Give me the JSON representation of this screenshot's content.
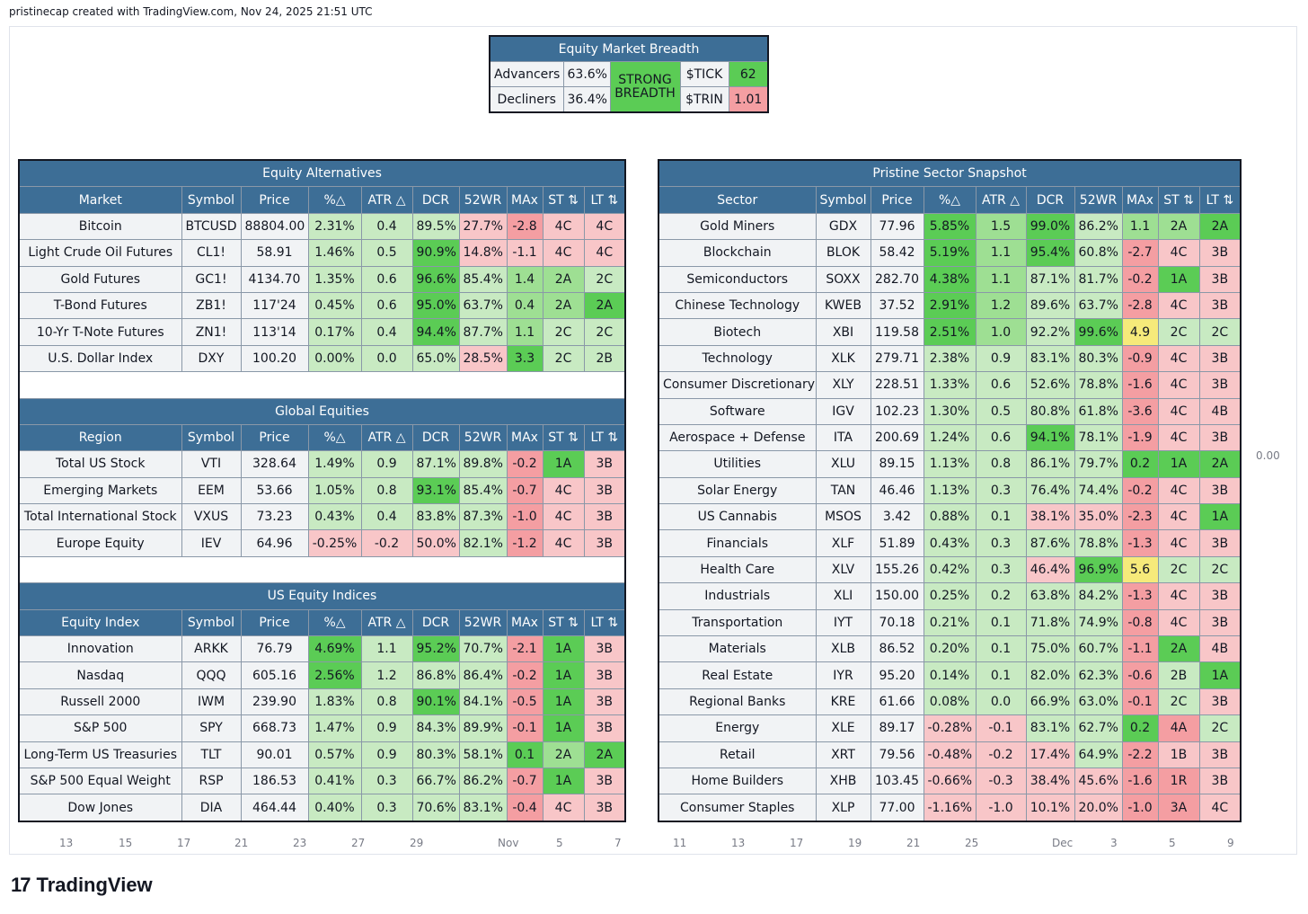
{
  "header": {
    "caption": "pristinecap created with TradingView.com, Nov 24, 2025 21:51 UTC"
  },
  "breadth": {
    "title": "Equity Market Breadth",
    "advancers_label": "Advancers",
    "advancers_value": "63.6%",
    "decliners_label": "Decliners",
    "decliners_value": "36.4%",
    "status": "STRONG BREADTH",
    "tick_label": "$TICK",
    "tick_value": "62",
    "trin_label": "$TRIN",
    "trin_value": "1.01"
  },
  "columns": [
    "Symbol",
    "Price",
    "%△",
    "ATR △",
    "DCR",
    "52WR",
    "MAx",
    "ST ⇅",
    "LT ⇅"
  ],
  "alternatives": {
    "title": "Equity Alternatives",
    "first_col": "Market",
    "rows": [
      [
        "Bitcoin",
        "BTCUSD",
        "88804.00",
        "2.31%",
        "0.4",
        "89.5%",
        "27.7%",
        "-2.8",
        "4C",
        "4C"
      ],
      [
        "Light Crude Oil Futures",
        "CL1!",
        "58.91",
        "1.46%",
        "0.5",
        "90.9%",
        "14.8%",
        "-1.1",
        "4C",
        "4C"
      ],
      [
        "Gold Futures",
        "GC1!",
        "4134.70",
        "1.35%",
        "0.6",
        "96.6%",
        "85.4%",
        "1.4",
        "2A",
        "2C"
      ],
      [
        "T-Bond Futures",
        "ZB1!",
        "117'24",
        "0.45%",
        "0.6",
        "95.0%",
        "63.7%",
        "0.4",
        "2A",
        "2A"
      ],
      [
        "10-Yr T-Note Futures",
        "ZN1!",
        "113'14",
        "0.17%",
        "0.4",
        "94.4%",
        "87.7%",
        "1.1",
        "2C",
        "2C"
      ],
      [
        "U.S. Dollar Index",
        "DXY",
        "100.20",
        "0.00%",
        "0.0",
        "65.0%",
        "28.5%",
        "3.3",
        "2C",
        "2B"
      ]
    ],
    "colors": [
      [
        "w",
        "w",
        "w",
        "g1",
        "g1",
        "g1",
        "r1",
        "r2",
        "r1",
        "r1"
      ],
      [
        "w",
        "w",
        "w",
        "g1",
        "g1",
        "g3",
        "r1",
        "r1",
        "r1",
        "r1"
      ],
      [
        "w",
        "w",
        "w",
        "g1",
        "g1",
        "g3",
        "g1",
        "g2",
        "g2",
        "g1"
      ],
      [
        "w",
        "w",
        "w",
        "g1",
        "g1",
        "g3",
        "g1",
        "g2",
        "g2",
        "g3"
      ],
      [
        "w",
        "w",
        "w",
        "g1",
        "g1",
        "g3",
        "g1",
        "g2",
        "g1",
        "g1"
      ],
      [
        "w",
        "w",
        "w",
        "g1",
        "g1",
        "g1",
        "r1",
        "g3",
        "g1",
        "g1"
      ]
    ]
  },
  "global": {
    "title": "Global Equities",
    "first_col": "Region",
    "rows": [
      [
        "Total US Stock",
        "VTI",
        "328.64",
        "1.49%",
        "0.9",
        "87.1%",
        "89.8%",
        "-0.2",
        "1A",
        "3B"
      ],
      [
        "Emerging Markets",
        "EEM",
        "53.66",
        "1.05%",
        "0.8",
        "93.1%",
        "85.4%",
        "-0.7",
        "4C",
        "3B"
      ],
      [
        "Total International Stock",
        "VXUS",
        "73.23",
        "0.43%",
        "0.4",
        "83.8%",
        "87.3%",
        "-1.0",
        "4C",
        "3B"
      ],
      [
        "Europe Equity",
        "IEV",
        "64.96",
        "-0.25%",
        "-0.2",
        "50.0%",
        "82.1%",
        "-1.2",
        "4C",
        "3B"
      ]
    ],
    "colors": [
      [
        "w",
        "w",
        "w",
        "g1",
        "g1",
        "g1",
        "g1",
        "r2",
        "g3",
        "r1"
      ],
      [
        "w",
        "w",
        "w",
        "g1",
        "g1",
        "g3",
        "g1",
        "r2",
        "r1",
        "r1"
      ],
      [
        "w",
        "w",
        "w",
        "g1",
        "g1",
        "g1",
        "g1",
        "r2",
        "r1",
        "r1"
      ],
      [
        "w",
        "w",
        "w",
        "r1",
        "r1",
        "r1",
        "g1",
        "r2",
        "r1",
        "r1"
      ]
    ]
  },
  "indices": {
    "title": "US Equity Indices",
    "first_col": "Equity Index",
    "rows": [
      [
        "Innovation",
        "ARKK",
        "76.79",
        "4.69%",
        "1.1",
        "95.2%",
        "70.7%",
        "-2.1",
        "1A",
        "3B"
      ],
      [
        "Nasdaq",
        "QQQ",
        "605.16",
        "2.56%",
        "1.2",
        "86.8%",
        "86.4%",
        "-0.2",
        "1A",
        "3B"
      ],
      [
        "Russell 2000",
        "IWM",
        "239.90",
        "1.83%",
        "0.8",
        "90.1%",
        "84.1%",
        "-0.5",
        "1A",
        "3B"
      ],
      [
        "S&P 500",
        "SPY",
        "668.73",
        "1.47%",
        "0.9",
        "84.3%",
        "89.9%",
        "-0.1",
        "1A",
        "3B"
      ],
      [
        "Long-Term US Treasuries",
        "TLT",
        "90.01",
        "0.57%",
        "0.9",
        "80.3%",
        "58.1%",
        "0.1",
        "2A",
        "2A"
      ],
      [
        "S&P 500 Equal Weight",
        "RSP",
        "186.53",
        "0.41%",
        "0.3",
        "66.7%",
        "86.2%",
        "-0.7",
        "1A",
        "3B"
      ],
      [
        "Dow Jones",
        "DIA",
        "464.44",
        "0.40%",
        "0.3",
        "70.6%",
        "83.1%",
        "-0.4",
        "4C",
        "3B"
      ]
    ],
    "colors": [
      [
        "w",
        "w",
        "w",
        "g3",
        "g1",
        "g3",
        "g1",
        "r2",
        "g3",
        "r1"
      ],
      [
        "w",
        "w",
        "w",
        "g3",
        "g1",
        "g1",
        "g1",
        "r2",
        "g3",
        "r1"
      ],
      [
        "w",
        "w",
        "w",
        "g1",
        "g1",
        "g3",
        "g1",
        "r2",
        "g3",
        "r1"
      ],
      [
        "w",
        "w",
        "w",
        "g1",
        "g1",
        "g1",
        "g1",
        "r2",
        "g3",
        "r1"
      ],
      [
        "w",
        "w",
        "w",
        "g1",
        "g1",
        "g1",
        "g1",
        "g3",
        "g2",
        "g3"
      ],
      [
        "w",
        "w",
        "w",
        "g1",
        "g1",
        "g1",
        "g1",
        "r2",
        "g3",
        "r1"
      ],
      [
        "w",
        "w",
        "w",
        "g1",
        "g1",
        "g1",
        "g1",
        "r2",
        "r1",
        "r1"
      ]
    ]
  },
  "sectors": {
    "title": "Pristine Sector Snapshot",
    "first_col": "Sector",
    "rows": [
      [
        "Gold Miners",
        "GDX",
        "77.96",
        "5.85%",
        "1.5",
        "99.0%",
        "86.2%",
        "1.1",
        "2A",
        "2A"
      ],
      [
        "Blockchain",
        "BLOK",
        "58.42",
        "5.19%",
        "1.1",
        "95.4%",
        "60.8%",
        "-2.7",
        "4C",
        "3B"
      ],
      [
        "Semiconductors",
        "SOXX",
        "282.70",
        "4.38%",
        "1.1",
        "87.1%",
        "81.7%",
        "-0.2",
        "1A",
        "3B"
      ],
      [
        "Chinese Technology",
        "KWEB",
        "37.52",
        "2.91%",
        "1.2",
        "89.6%",
        "63.7%",
        "-2.8",
        "4C",
        "3B"
      ],
      [
        "Biotech",
        "XBI",
        "119.58",
        "2.51%",
        "1.0",
        "92.2%",
        "99.6%",
        "4.9",
        "2C",
        "2C"
      ],
      [
        "Technology",
        "XLK",
        "279.71",
        "2.38%",
        "0.9",
        "83.1%",
        "80.3%",
        "-0.9",
        "4C",
        "3B"
      ],
      [
        "Consumer Discretionary",
        "XLY",
        "228.51",
        "1.33%",
        "0.6",
        "52.6%",
        "78.8%",
        "-1.6",
        "4C",
        "3B"
      ],
      [
        "Software",
        "IGV",
        "102.23",
        "1.30%",
        "0.5",
        "80.8%",
        "61.8%",
        "-3.6",
        "4C",
        "4B"
      ],
      [
        "Aerospace + Defense",
        "ITA",
        "200.69",
        "1.24%",
        "0.6",
        "94.1%",
        "78.1%",
        "-1.9",
        "4C",
        "3B"
      ],
      [
        "Utilities",
        "XLU",
        "89.15",
        "1.13%",
        "0.8",
        "86.1%",
        "79.7%",
        "0.2",
        "1A",
        "2A"
      ],
      [
        "Solar Energy",
        "TAN",
        "46.46",
        "1.13%",
        "0.3",
        "76.4%",
        "74.4%",
        "-0.2",
        "4C",
        "3B"
      ],
      [
        "US Cannabis",
        "MSOS",
        "3.42",
        "0.88%",
        "0.1",
        "38.1%",
        "35.0%",
        "-2.3",
        "4C",
        "1A"
      ],
      [
        "Financials",
        "XLF",
        "51.89",
        "0.43%",
        "0.3",
        "87.6%",
        "78.8%",
        "-1.3",
        "4C",
        "3B"
      ],
      [
        "Health Care",
        "XLV",
        "155.26",
        "0.42%",
        "0.3",
        "46.4%",
        "96.9%",
        "5.6",
        "2C",
        "2C"
      ],
      [
        "Industrials",
        "XLI",
        "150.00",
        "0.25%",
        "0.2",
        "63.8%",
        "84.2%",
        "-1.3",
        "4C",
        "3B"
      ],
      [
        "Transportation",
        "IYT",
        "70.18",
        "0.21%",
        "0.1",
        "71.8%",
        "74.9%",
        "-0.8",
        "4C",
        "3B"
      ],
      [
        "Materials",
        "XLB",
        "86.52",
        "0.20%",
        "0.1",
        "75.0%",
        "60.7%",
        "-1.1",
        "2A",
        "4B"
      ],
      [
        "Real Estate",
        "IYR",
        "95.20",
        "0.14%",
        "0.1",
        "82.0%",
        "62.3%",
        "-0.6",
        "2B",
        "1A"
      ],
      [
        "Regional Banks",
        "KRE",
        "61.66",
        "0.08%",
        "0.0",
        "66.9%",
        "63.0%",
        "-0.1",
        "2C",
        "3B"
      ],
      [
        "Energy",
        "XLE",
        "89.17",
        "-0.28%",
        "-0.1",
        "83.1%",
        "62.7%",
        "0.2",
        "4A",
        "2C"
      ],
      [
        "Retail",
        "XRT",
        "79.56",
        "-0.48%",
        "-0.2",
        "17.4%",
        "64.9%",
        "-2.2",
        "1B",
        "3B"
      ],
      [
        "Home Builders",
        "XHB",
        "103.45",
        "-0.66%",
        "-0.3",
        "38.4%",
        "45.6%",
        "-1.6",
        "1R",
        "3B"
      ],
      [
        "Consumer Staples",
        "XLP",
        "77.00",
        "-1.16%",
        "-1.0",
        "10.1%",
        "20.0%",
        "-1.0",
        "3A",
        "4C"
      ]
    ],
    "colors": [
      [
        "w",
        "w",
        "w",
        "g3",
        "g2",
        "g3",
        "g1",
        "g2",
        "g2",
        "g3"
      ],
      [
        "w",
        "w",
        "w",
        "g3",
        "g2",
        "g3",
        "g1",
        "r2",
        "r1",
        "r1"
      ],
      [
        "w",
        "w",
        "w",
        "g3",
        "g2",
        "g1",
        "g1",
        "r2",
        "g3",
        "r1"
      ],
      [
        "w",
        "w",
        "w",
        "g3",
        "g2",
        "g1",
        "g1",
        "r2",
        "r1",
        "r1"
      ],
      [
        "w",
        "w",
        "w",
        "g3",
        "g2",
        "g1",
        "g3",
        "y1",
        "g1",
        "g1"
      ],
      [
        "w",
        "w",
        "w",
        "g1",
        "g1",
        "g1",
        "g1",
        "r2",
        "r1",
        "r1"
      ],
      [
        "w",
        "w",
        "w",
        "g1",
        "g1",
        "g1",
        "g1",
        "r2",
        "r1",
        "r1"
      ],
      [
        "w",
        "w",
        "w",
        "g1",
        "g1",
        "g1",
        "g1",
        "r2",
        "r1",
        "r1"
      ],
      [
        "w",
        "w",
        "w",
        "g1",
        "g1",
        "g3",
        "g1",
        "r2",
        "r1",
        "r1"
      ],
      [
        "w",
        "w",
        "w",
        "g1",
        "g1",
        "g1",
        "g1",
        "g3",
        "g3",
        "g3"
      ],
      [
        "w",
        "w",
        "w",
        "g1",
        "g1",
        "g1",
        "g1",
        "r2",
        "r1",
        "r1"
      ],
      [
        "w",
        "w",
        "w",
        "g1",
        "g1",
        "r1",
        "r1",
        "r2",
        "r1",
        "g3"
      ],
      [
        "w",
        "w",
        "w",
        "g1",
        "g1",
        "g1",
        "g1",
        "r2",
        "r1",
        "r1"
      ],
      [
        "w",
        "w",
        "w",
        "g1",
        "g1",
        "r1",
        "g3",
        "y1",
        "g1",
        "g1"
      ],
      [
        "w",
        "w",
        "w",
        "g1",
        "g1",
        "g1",
        "g1",
        "r2",
        "r1",
        "r1"
      ],
      [
        "w",
        "w",
        "w",
        "g1",
        "g1",
        "g1",
        "g1",
        "r2",
        "r1",
        "r1"
      ],
      [
        "w",
        "w",
        "w",
        "g1",
        "g1",
        "g1",
        "g1",
        "r2",
        "g3",
        "r1"
      ],
      [
        "w",
        "w",
        "w",
        "g1",
        "g1",
        "g1",
        "g1",
        "r2",
        "g1",
        "g3"
      ],
      [
        "w",
        "w",
        "w",
        "g1",
        "g1",
        "g1",
        "g1",
        "r2",
        "g1",
        "r1"
      ],
      [
        "w",
        "w",
        "w",
        "r1",
        "r1",
        "g1",
        "g1",
        "g3",
        "r2",
        "g1"
      ],
      [
        "w",
        "w",
        "w",
        "r1",
        "r1",
        "r1",
        "g1",
        "r2",
        "r1",
        "r1"
      ],
      [
        "w",
        "w",
        "w",
        "r1",
        "r1",
        "r1",
        "r1",
        "r2",
        "r2",
        "r1"
      ],
      [
        "w",
        "w",
        "w",
        "r1",
        "r1",
        "r1",
        "r1",
        "r2",
        "r2",
        "r1"
      ]
    ]
  },
  "axis_labels": [
    "13",
    "15",
    "17",
    "21",
    "23",
    "27",
    "29",
    "Nov",
    "5",
    "7",
    "11",
    "13",
    "17",
    "19",
    "21",
    "25",
    "Dec",
    "3",
    "5",
    "9"
  ],
  "price_scale_value": "0.00",
  "brand": {
    "mark": "17",
    "name": "TradingView"
  }
}
